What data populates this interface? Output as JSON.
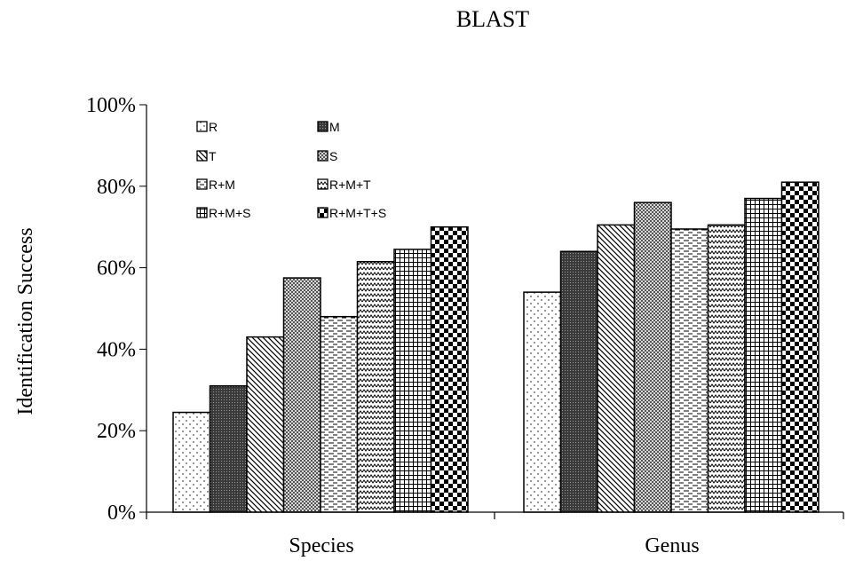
{
  "chart_data": {
    "type": "bar",
    "title": "BLAST",
    "xlabel": "",
    "ylabel": "Identification Success",
    "ylim": [
      0,
      100
    ],
    "y_ticks": [
      "0%",
      "20%",
      "40%",
      "60%",
      "80%",
      "100%"
    ],
    "y_tick_values": [
      0,
      20,
      40,
      60,
      80,
      100
    ],
    "categories": [
      "Species",
      "Genus"
    ],
    "grid": false,
    "legend_position": "top-left",
    "series": [
      {
        "name": "R",
        "pattern": "dots-sparse",
        "values": [
          24.5,
          54
        ]
      },
      {
        "name": "M",
        "pattern": "dense-dark",
        "values": [
          31,
          64
        ]
      },
      {
        "name": "T",
        "pattern": "diag-down",
        "values": [
          43,
          70.5
        ]
      },
      {
        "name": "S",
        "pattern": "checker-fine",
        "values": [
          57.5,
          76
        ]
      },
      {
        "name": "R+M",
        "pattern": "horizontal-dashes",
        "values": [
          48,
          69.5
        ]
      },
      {
        "name": "R+M+T",
        "pattern": "zigzag",
        "values": [
          61.5,
          70.5
        ]
      },
      {
        "name": "R+M+S",
        "pattern": "grid",
        "values": [
          64.5,
          77
        ]
      },
      {
        "name": "R+M+T+S",
        "pattern": "checker-large",
        "values": [
          70,
          81
        ]
      }
    ]
  }
}
